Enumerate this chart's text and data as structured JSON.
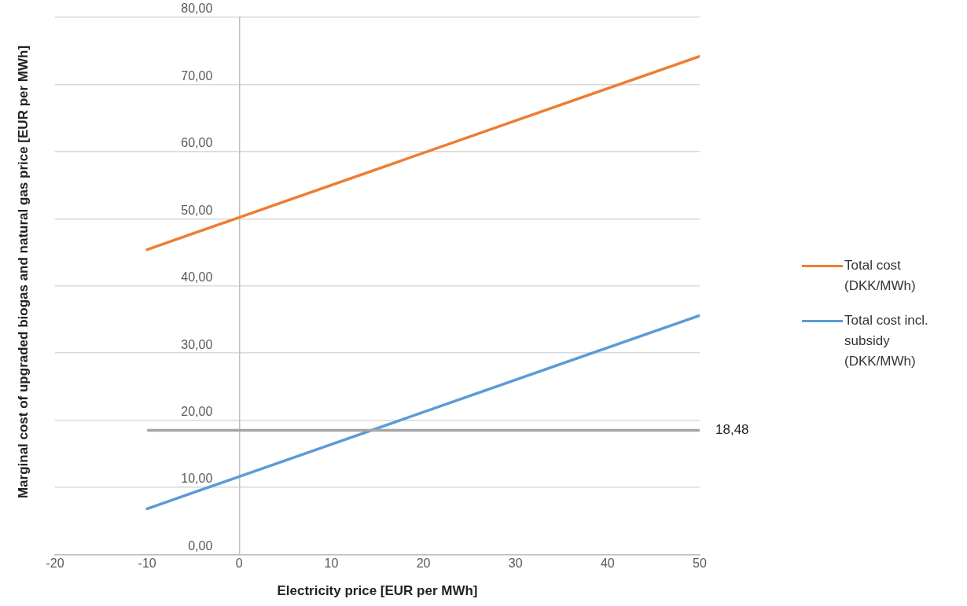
{
  "chart_data": {
    "type": "line",
    "xlabel": "Electricity price [EUR per MWh]",
    "ylabel": "Marginal cost of upgraded biogas and natural gas price [EUR per MWh]",
    "x": [
      -10,
      0,
      50
    ],
    "series": [
      {
        "name": "Total cost (DKK/MWh)",
        "color": "#ed7d31",
        "values": [
          45.4,
          50.2,
          74.2
        ]
      },
      {
        "name": "Total cost incl. subsidy (DKK/MWh)",
        "color": "#5b9bd5",
        "values": [
          6.8,
          11.6,
          35.6
        ]
      }
    ],
    "xlim": [
      -20,
      50
    ],
    "xticks": [
      -20,
      -10,
      0,
      10,
      20,
      30,
      40,
      50
    ],
    "ylim": [
      0,
      80
    ],
    "yticks": [
      {
        "value": 0,
        "label": "0,00"
      },
      {
        "value": 10,
        "label": "10,00"
      },
      {
        "value": 20,
        "label": "20,00"
      },
      {
        "value": 30,
        "label": "30,00"
      },
      {
        "value": 40,
        "label": "40,00"
      },
      {
        "value": 50,
        "label": "50,00"
      },
      {
        "value": 60,
        "label": "60,00"
      },
      {
        "value": 70,
        "label": "70,00"
      },
      {
        "value": 80,
        "label": "80,00"
      }
    ],
    "ref_lines": [
      {
        "axis": "y",
        "value": 18.48,
        "label": "18,48",
        "color": "#a5a5a5"
      }
    ],
    "grid": "y",
    "legend": "right",
    "marker": "none",
    "line_style": "solid"
  }
}
